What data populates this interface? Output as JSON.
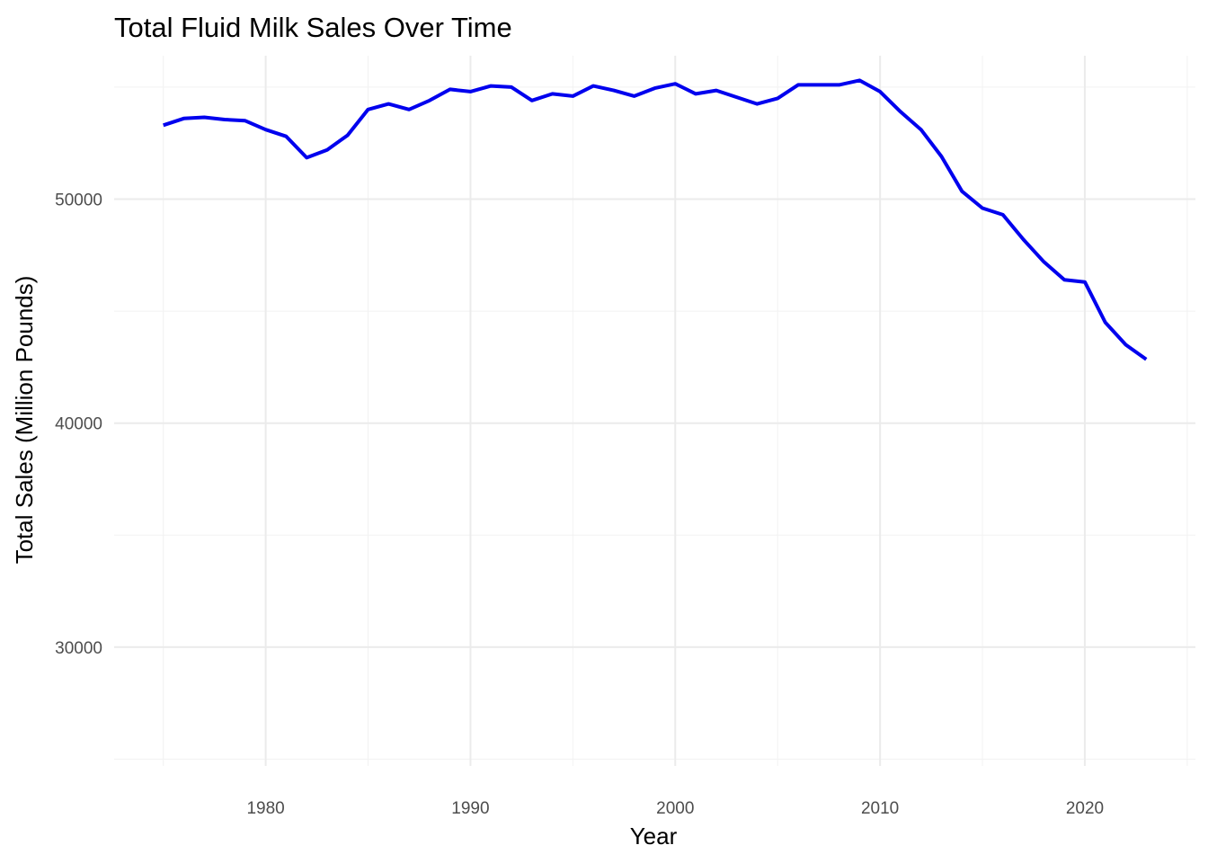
{
  "chart_data": {
    "type": "line",
    "title": "Total Fluid Milk Sales Over Time",
    "xlabel": "Year",
    "ylabel": "Total Sales (Million Pounds)",
    "xlim": [
      1972.6,
      2025.4
    ],
    "ylim": [
      24700,
      56400
    ],
    "x_ticks": [
      1980,
      1990,
      2000,
      2010,
      2020
    ],
    "x_tick_labels": [
      "1980",
      "1990",
      "2000",
      "2010",
      "2020"
    ],
    "x_minor_ticks": [
      1975,
      1985,
      1995,
      2005,
      2015,
      2025
    ],
    "y_ticks": [
      30000,
      40000,
      50000
    ],
    "y_tick_labels": [
      "30000",
      "40000",
      "50000"
    ],
    "y_minor_ticks": [
      25000,
      35000,
      45000,
      55000
    ],
    "grid": true,
    "legend": "none",
    "line_color": "#0000ee",
    "series": [
      {
        "x": [
          1975,
          1976,
          1977,
          1978,
          1979,
          1980,
          1981,
          1982,
          1983,
          1984,
          1985,
          1986,
          1987,
          1988,
          1989,
          1990,
          1991,
          1992,
          1993,
          1994,
          1995,
          1996,
          1997,
          1998,
          1999,
          2000,
          2001,
          2002,
          2003,
          2004,
          2005,
          2006,
          2007,
          2008,
          2009,
          2010,
          2011,
          2012,
          2013,
          2014,
          2015,
          2016,
          2017,
          2018,
          2019,
          2020,
          2021,
          2022,
          2023
        ],
        "values": [
          53300,
          53600,
          53650,
          53550,
          53500,
          53100,
          52800,
          51850,
          52200,
          52850,
          54000,
          54250,
          54000,
          54400,
          54900,
          54800,
          55050,
          55000,
          54400,
          54700,
          54600,
          55050,
          54850,
          54600,
          54950,
          55150,
          54700,
          54850,
          54550,
          54250,
          54500,
          55100,
          55100,
          55100,
          55300,
          54800,
          53900,
          53100,
          51900,
          50350,
          49600,
          49300,
          48200,
          47200,
          46400,
          46300,
          44500,
          43500,
          42850
        ]
      }
    ]
  }
}
